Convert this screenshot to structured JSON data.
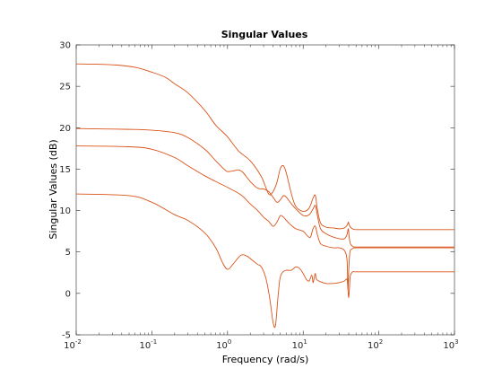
{
  "chart_data": {
    "type": "line",
    "title": "Singular Values",
    "xlabel": "Frequency (rad/s)",
    "ylabel": "Singular Values (dB)",
    "xscale": "log",
    "xlim": [
      0.01,
      1000
    ],
    "ylim": [
      -5,
      30
    ],
    "x_ticks": [
      {
        "value": 0.01,
        "base": "10",
        "exp": "-2"
      },
      {
        "value": 0.1,
        "base": "10",
        "exp": "-1"
      },
      {
        "value": 1,
        "base": "10",
        "exp": "0"
      },
      {
        "value": 10,
        "base": "10",
        "exp": "1"
      },
      {
        "value": 100,
        "base": "10",
        "exp": "2"
      },
      {
        "value": 1000,
        "base": "10",
        "exp": "3"
      }
    ],
    "y_ticks": [
      -5,
      0,
      5,
      10,
      15,
      20,
      25,
      30
    ],
    "grid": false,
    "box": true,
    "line_color": "#D95319",
    "series": [
      {
        "x": [
          0.01,
          0.03,
          0.06,
          0.1,
          0.15,
          0.2,
          0.3,
          0.5,
          0.7,
          1.0,
          1.4,
          2.0,
          2.8,
          3.5,
          4.0,
          4.5,
          5.0,
          5.5,
          6.0,
          7.0,
          8.0,
          10.0,
          12.0,
          13.5,
          14.5,
          15.5,
          17.0,
          20.0,
          25.0,
          30.0,
          35.0,
          38.0,
          39.5,
          40.5,
          42.0,
          45.0,
          50.0,
          100.0,
          1000.0
        ],
        "y": [
          27.7,
          27.6,
          27.3,
          26.7,
          26.1,
          25.3,
          24.2,
          22.1,
          20.3,
          18.9,
          17.2,
          16.0,
          14.1,
          12.0,
          12.3,
          13.4,
          15.1,
          15.4,
          14.5,
          12.0,
          10.5,
          9.9,
          10.3,
          11.5,
          11.8,
          10.0,
          8.5,
          8.0,
          7.9,
          7.8,
          7.9,
          8.2,
          8.6,
          8.3,
          8.0,
          7.8,
          7.7,
          7.7,
          7.7
        ]
      },
      {
        "x": [
          0.01,
          0.05,
          0.1,
          0.2,
          0.3,
          0.5,
          0.7,
          0.9,
          1.0,
          1.2,
          1.4,
          1.6,
          2.0,
          2.5,
          3.0,
          3.5,
          4.0,
          4.5,
          5.0,
          5.5,
          6.0,
          7.0,
          8.0,
          10.0,
          12.0,
          13.5,
          14.5,
          15.5,
          17.0,
          20.0,
          25.0,
          30.0,
          35.0,
          38.0,
          39.5,
          40.5,
          42.0,
          45.0,
          50.0,
          100.0,
          1000.0
        ],
        "y": [
          19.9,
          19.8,
          19.7,
          19.4,
          18.8,
          17.4,
          16.0,
          15.0,
          14.7,
          14.8,
          14.9,
          14.6,
          13.5,
          12.7,
          12.6,
          12.3,
          11.6,
          11.0,
          11.3,
          11.8,
          11.6,
          10.8,
          10.2,
          9.4,
          9.5,
          10.2,
          10.6,
          9.3,
          7.8,
          7.2,
          6.8,
          6.6,
          6.6,
          7.1,
          7.8,
          6.9,
          6.0,
          5.7,
          5.6,
          5.6,
          5.6
        ]
      },
      {
        "x": [
          0.01,
          0.05,
          0.1,
          0.2,
          0.3,
          0.5,
          0.7,
          1.0,
          1.5,
          2.0,
          2.5,
          3.0,
          3.5,
          4.0,
          4.5,
          5.0,
          5.5,
          6.0,
          7.0,
          8.0,
          10.0,
          11.5,
          12.5,
          13.5,
          14.5,
          15.5,
          17.0,
          20.0,
          25.0,
          30.0,
          35.0,
          38.0,
          39.0,
          40.0,
          41.0,
          42.0,
          45.0,
          50.0,
          100.0,
          1000.0
        ],
        "y": [
          17.8,
          17.7,
          17.4,
          16.4,
          15.4,
          14.2,
          13.5,
          12.8,
          11.9,
          10.8,
          10.0,
          9.2,
          8.7,
          8.1,
          8.6,
          9.4,
          9.2,
          8.8,
          8.2,
          7.8,
          7.5,
          6.9,
          6.8,
          7.8,
          8.1,
          7.0,
          6.0,
          5.7,
          5.5,
          5.5,
          5.2,
          4.0,
          0.5,
          2.8,
          4.5,
          5.2,
          5.4,
          5.5,
          5.5,
          5.5
        ]
      },
      {
        "x": [
          0.01,
          0.05,
          0.1,
          0.2,
          0.3,
          0.5,
          0.7,
          0.85,
          1.0,
          1.2,
          1.5,
          1.8,
          2.2,
          2.5,
          2.8,
          3.2,
          3.6,
          4.0,
          4.3,
          4.6,
          4.9,
          5.2,
          5.6,
          6.0,
          7.0,
          8.0,
          9.0,
          10.0,
          11.0,
          12.0,
          13.0,
          13.5,
          14.0,
          14.5,
          15.0,
          17.0,
          20.0,
          25.0,
          30.0,
          35.0,
          38.0,
          39.0,
          40.0,
          41.0,
          42.0,
          45.0,
          50.0,
          100.0,
          1000.0
        ],
        "y": [
          12.0,
          11.8,
          11.0,
          9.5,
          8.8,
          7.3,
          5.5,
          3.8,
          2.9,
          3.6,
          4.6,
          4.5,
          3.9,
          3.5,
          3.2,
          1.9,
          -0.5,
          -3.5,
          -3.9,
          -0.9,
          1.6,
          2.4,
          2.7,
          2.8,
          2.8,
          3.2,
          3.0,
          2.4,
          1.7,
          1.5,
          2.2,
          1.3,
          1.9,
          2.4,
          1.7,
          1.4,
          1.2,
          1.2,
          1.3,
          1.5,
          1.7,
          0.6,
          -0.5,
          0.8,
          2.1,
          2.6,
          2.6,
          2.6,
          2.6
        ]
      }
    ]
  }
}
